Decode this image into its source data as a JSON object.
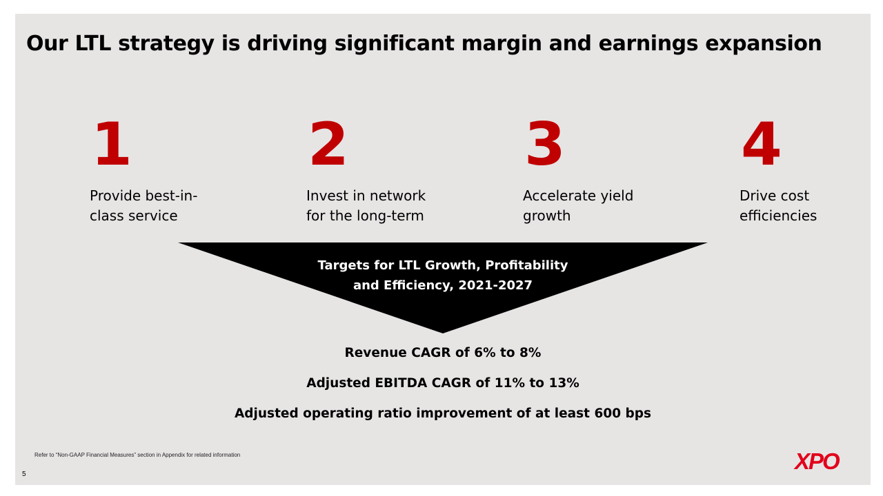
{
  "slide": {
    "title": "Our LTL strategy is driving significant margin and earnings expansion",
    "pillars": [
      {
        "number": "1",
        "label": "Provide best-in-class service"
      },
      {
        "number": "2",
        "label": "Invest in network for the long-term"
      },
      {
        "number": "3",
        "label": "Accelerate yield growth"
      },
      {
        "number": "4",
        "label": "Drive cost efficiencies"
      }
    ],
    "funnel_title": "Targets for LTL Growth, Profitability and Efficiency, 2021-2027",
    "targets": [
      "Revenue CAGR of 6% to 8%",
      "Adjusted EBITDA CAGR of 11% to 13%",
      "Adjusted operating ratio improvement of at least 600 bps"
    ],
    "footnote": "Refer to “Non-GAAP Financial Measures” section in Appendix for related information",
    "page_number": "5",
    "logo": "XPO"
  },
  "colors": {
    "accent_red": "#c00000",
    "logo_red": "#e1001a",
    "background": "#e7e4e4",
    "funnel": "#000000"
  }
}
